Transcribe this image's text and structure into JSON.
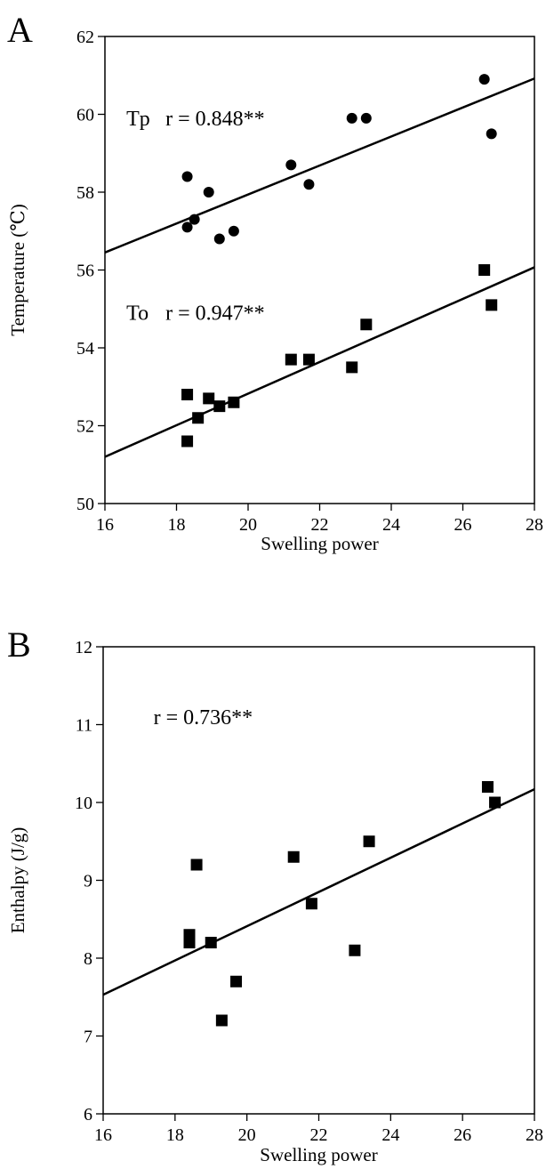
{
  "chart_data": [
    {
      "panel": "A",
      "type": "scatter",
      "xlabel": "Swelling power",
      "ylabel": "Temperature (℃)",
      "xlim": [
        16,
        28
      ],
      "ylim": [
        50,
        62
      ],
      "xticks": [
        "16",
        "18",
        "20",
        "22",
        "24",
        "26",
        "28"
      ],
      "yticks": [
        "50",
        "52",
        "54",
        "56",
        "58",
        "60",
        "62"
      ],
      "grid": false,
      "legend": "none",
      "series": [
        {
          "name": "Tp",
          "marker": "circle",
          "points": [
            {
              "x": 18.3,
              "y": 58.4
            },
            {
              "x": 18.3,
              "y": 57.1
            },
            {
              "x": 18.5,
              "y": 57.3
            },
            {
              "x": 18.9,
              "y": 58.0
            },
            {
              "x": 19.2,
              "y": 56.8
            },
            {
              "x": 19.6,
              "y": 57.0
            },
            {
              "x": 21.2,
              "y": 58.7
            },
            {
              "x": 21.7,
              "y": 58.2
            },
            {
              "x": 22.9,
              "y": 59.9
            },
            {
              "x": 23.3,
              "y": 59.9
            },
            {
              "x": 26.6,
              "y": 60.9
            },
            {
              "x": 26.8,
              "y": 59.5
            }
          ],
          "fit": {
            "x": [
              16,
              28
            ],
            "y": [
              56.45,
              60.92
            ]
          },
          "annotation": {
            "label": "Tp",
            "stat": "r = 0.848**",
            "at": {
              "x": 16.6,
              "y": 59.9
            }
          }
        },
        {
          "name": "To",
          "marker": "square",
          "points": [
            {
              "x": 18.3,
              "y": 52.8
            },
            {
              "x": 18.3,
              "y": 51.6
            },
            {
              "x": 18.6,
              "y": 52.2
            },
            {
              "x": 18.9,
              "y": 52.7
            },
            {
              "x": 19.2,
              "y": 52.5
            },
            {
              "x": 19.6,
              "y": 52.6
            },
            {
              "x": 21.2,
              "y": 53.7
            },
            {
              "x": 21.7,
              "y": 53.7
            },
            {
              "x": 22.9,
              "y": 53.5
            },
            {
              "x": 23.3,
              "y": 54.6
            },
            {
              "x": 26.6,
              "y": 56.0
            },
            {
              "x": 26.8,
              "y": 55.1
            }
          ],
          "fit": {
            "x": [
              16,
              28
            ],
            "y": [
              51.2,
              56.07
            ]
          },
          "annotation": {
            "label": "To",
            "stat": "r = 0.947**",
            "at": {
              "x": 16.6,
              "y": 54.9
            }
          }
        }
      ]
    },
    {
      "panel": "B",
      "type": "scatter",
      "xlabel": "Swelling power",
      "ylabel": "Enthalpy (J/g)",
      "xlim": [
        16,
        28
      ],
      "ylim": [
        6,
        12
      ],
      "xticks": [
        "16",
        "18",
        "20",
        "22",
        "24",
        "26",
        "28"
      ],
      "yticks": [
        "6",
        "7",
        "8",
        "9",
        "10",
        "11",
        "12"
      ],
      "grid": false,
      "legend": "none",
      "series": [
        {
          "name": "",
          "marker": "square",
          "points": [
            {
              "x": 18.4,
              "y": 8.3
            },
            {
              "x": 18.4,
              "y": 8.2
            },
            {
              "x": 18.6,
              "y": 9.2
            },
            {
              "x": 19.0,
              "y": 8.2
            },
            {
              "x": 19.3,
              "y": 7.2
            },
            {
              "x": 19.7,
              "y": 7.7
            },
            {
              "x": 21.3,
              "y": 9.3
            },
            {
              "x": 21.8,
              "y": 8.7
            },
            {
              "x": 23.0,
              "y": 8.1
            },
            {
              "x": 23.4,
              "y": 9.5
            },
            {
              "x": 26.7,
              "y": 10.2
            },
            {
              "x": 26.9,
              "y": 10.0
            }
          ],
          "fit": {
            "x": [
              16,
              28
            ],
            "y": [
              7.53,
              10.17
            ]
          },
          "annotation": {
            "label": "",
            "stat": "r = 0.736**",
            "at": {
              "x": 17.4,
              "y": 11.1
            }
          }
        }
      ]
    }
  ]
}
